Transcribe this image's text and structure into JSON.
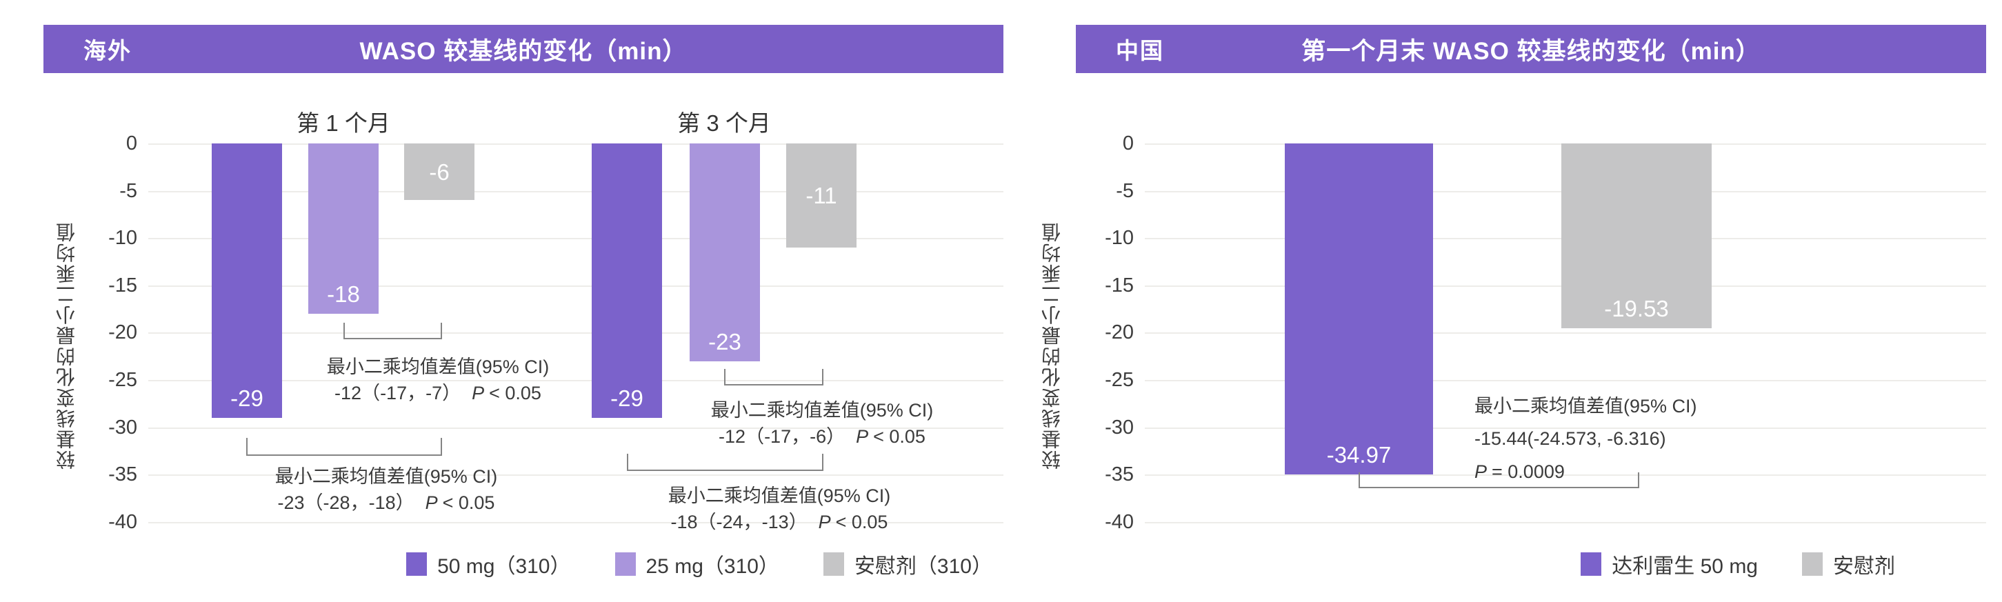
{
  "accent_color": "#7a5ec6",
  "grid_color": "#edece9",
  "chart_data": [
    {
      "type": "bar",
      "region_tag": "海外",
      "title": "WASO 较基线的变化（min）",
      "ylabel": "较基线变化的最小二乘均值",
      "ylim": [
        -40,
        0
      ],
      "yticks": [
        0,
        -5,
        -10,
        -15,
        -20,
        -25,
        -30,
        -35,
        -40
      ],
      "grid": true,
      "legend_position": "bottom-right",
      "categories": [
        "第 1 个月",
        "第 3 个月"
      ],
      "series": [
        {
          "name": "50 mg（310）",
          "color": "#7b62cb",
          "values": [
            -29,
            -29
          ],
          "labels": [
            "-29",
            "-29"
          ]
        },
        {
          "name": "25 mg（310）",
          "color": "#a995dc",
          "values": [
            -18,
            -23
          ],
          "labels": [
            "-18",
            "-23"
          ]
        },
        {
          "name": "安慰剂（310）",
          "color": "#c5c5c6",
          "values": [
            -6,
            -11
          ],
          "labels": [
            "-6",
            "-11"
          ]
        }
      ],
      "comparisons": [
        {
          "title": "最小二乘均值差值(95% CI)",
          "estimate": "-12（-17，-7）",
          "p_name": "P",
          "p_value": "< 0.05"
        },
        {
          "title": "最小二乘均值差值(95% CI)",
          "estimate": "-23（-28，-18）",
          "p_name": "P",
          "p_value": "< 0.05"
        },
        {
          "title": "最小二乘均值差值(95% CI)",
          "estimate": "-12（-17，-6）",
          "p_name": "P",
          "p_value": "< 0.05"
        },
        {
          "title": "最小二乘均值差值(95% CI)",
          "estimate": "-18（-24，-13）",
          "p_name": "P",
          "p_value": "< 0.05"
        }
      ]
    },
    {
      "type": "bar",
      "region_tag": "中国",
      "title": "第一个月末 WASO 较基线的变化（min）",
      "ylabel": "较基线变化的最小二乘均值",
      "ylim": [
        -40,
        0
      ],
      "yticks": [
        0,
        -5,
        -10,
        -15,
        -20,
        -25,
        -30,
        -35,
        -40
      ],
      "grid": true,
      "legend_position": "bottom-right",
      "categories": [
        ""
      ],
      "series": [
        {
          "name": "达利雷生 50 mg",
          "color": "#7b62cb",
          "values": [
            -34.97
          ],
          "labels": [
            "-34.97"
          ]
        },
        {
          "name": "安慰剂",
          "color": "#c5c5c6",
          "values": [
            -19.53
          ],
          "labels": [
            "-19.53"
          ]
        }
      ],
      "comparisons": [
        {
          "title": "最小二乘均值差值(95% CI)",
          "estimate": "-15.44(-24.573, -6.316)",
          "p_name": "P",
          "p_value": "= 0.0009"
        }
      ]
    }
  ]
}
